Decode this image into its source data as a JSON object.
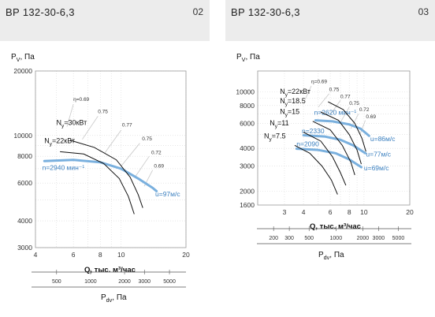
{
  "panels": [
    {
      "model": "ВР 132-30-6,3",
      "number": "02"
    },
    {
      "model": "ВР 132-30-6,3",
      "number": "03"
    }
  ],
  "chart_data": [
    {
      "type": "line",
      "ylabel": "P",
      "ylabel_sub": "V",
      "ylabel_unit": ", Па",
      "xlabel": "Q, тыс. м³/час",
      "x2label": "P",
      "x2label_sub": "dv",
      "x2label_unit": ", Па",
      "log_scale": true,
      "grid": true,
      "xlim": [
        4,
        20
      ],
      "ylim": [
        3000,
        20000
      ],
      "x_ticks": [
        4,
        6,
        8,
        10,
        20
      ],
      "y_ticks": [
        3000,
        4000,
        6000,
        8000,
        10000,
        20000
      ],
      "x2_ticks": [
        500,
        1000,
        2000,
        3000,
        5000
      ],
      "x2_range": [
        300,
        7000
      ],
      "efficiency_labels": [
        {
          "text": "η=0.69",
          "x": 6.0,
          "y": 14500
        },
        {
          "text": "0.75",
          "x": 7.8,
          "y": 12700
        },
        {
          "text": "0.77",
          "x": 10.1,
          "y": 11000
        },
        {
          "text": "0.75",
          "x": 12.5,
          "y": 9500
        },
        {
          "text": "0.72",
          "x": 13.8,
          "y": 8200
        },
        {
          "text": "0.69",
          "x": 14.2,
          "y": 7100
        }
      ],
      "efficiency_lines": [
        [
          [
            6.0,
            14000
          ],
          [
            5.6,
            11000
          ]
        ],
        [
          [
            7.8,
            12300
          ],
          [
            6.6,
            9600
          ]
        ],
        [
          [
            10.0,
            10600
          ],
          [
            8.4,
            8300
          ]
        ],
        [
          [
            12.2,
            9200
          ],
          [
            10.0,
            7200
          ]
        ],
        [
          [
            13.5,
            8000
          ],
          [
            11.6,
            6400
          ]
        ],
        [
          [
            14.0,
            6900
          ],
          [
            12.8,
            5800
          ]
        ]
      ],
      "power_curves": [
        {
          "label": "N",
          "sub": "y",
          "suffix": "=30кВт",
          "label_x": 5.0,
          "label_y": 11200,
          "points": [
            [
              5.8,
              9500
            ],
            [
              7.5,
              8800
            ],
            [
              9.5,
              7700
            ],
            [
              11.0,
              6400
            ],
            [
              12.0,
              5300
            ],
            [
              12.6,
              4600
            ]
          ]
        },
        {
          "label": "N",
          "sub": "y",
          "suffix": "=22кВт",
          "label_x": 4.4,
          "label_y": 9200,
          "points": [
            [
              5.2,
              8400
            ],
            [
              6.7,
              8200
            ],
            [
              8.3,
              7400
            ],
            [
              9.8,
              6300
            ],
            [
              10.8,
              5200
            ],
            [
              11.5,
              4300
            ]
          ]
        }
      ],
      "speed_curves": [
        {
          "label": "n=2940 мин⁻¹",
          "label_x": 4.3,
          "label_y": 6900,
          "points": [
            [
              4.4,
              7600
            ],
            [
              6.0,
              7700
            ],
            [
              8.0,
              7500
            ],
            [
              10.0,
              7000
            ],
            [
              12.0,
              6300
            ],
            [
              14.0,
              5700
            ],
            [
              14.6,
              5500
            ]
          ]
        }
      ],
      "velocity_labels": [
        {
          "text": "u=97м/с",
          "x": 14.4,
          "y": 5200
        }
      ]
    },
    {
      "type": "line",
      "ylabel": "P",
      "ylabel_sub": "V",
      "ylabel_unit": ", Па",
      "xlabel": "Q, тыс. м³/час",
      "x2label": "P",
      "x2label_sub": "dv",
      "x2label_unit": ", Па",
      "log_scale": true,
      "grid": true,
      "xlim": [
        2,
        20
      ],
      "ylim": [
        1600,
        14000
      ],
      "x_ticks": [
        3,
        4,
        6,
        8,
        10,
        20
      ],
      "y_ticks": [
        1600,
        2000,
        3000,
        4000,
        6000,
        8000,
        10000
      ],
      "x2_ticks": [
        200,
        300,
        500,
        1000,
        2000,
        3000,
        5000
      ],
      "x2_range": [
        130,
        7000
      ],
      "efficiency_labels": [
        {
          "text": "η=0.69",
          "x": 4.5,
          "y": 11500
        },
        {
          "text": "0.75",
          "x": 5.9,
          "y": 10100
        },
        {
          "text": "0.77",
          "x": 7.0,
          "y": 9000
        },
        {
          "text": "0.75",
          "x": 8.0,
          "y": 8100
        },
        {
          "text": "0.72",
          "x": 9.3,
          "y": 7300
        },
        {
          "text": "0.69",
          "x": 10.3,
          "y": 6500
        }
      ],
      "efficiency_lines": [
        [
          [
            4.5,
            11000
          ],
          [
            4.1,
            8800
          ]
        ],
        [
          [
            5.9,
            9700
          ],
          [
            5.0,
            7800
          ]
        ],
        [
          [
            7.0,
            8700
          ],
          [
            6.0,
            6900
          ]
        ],
        [
          [
            8.0,
            7800
          ],
          [
            7.0,
            6100
          ]
        ],
        [
          [
            9.2,
            7000
          ],
          [
            8.2,
            5500
          ]
        ],
        [
          [
            10.2,
            6300
          ],
          [
            9.4,
            5000
          ]
        ]
      ],
      "power_curves": [
        {
          "label": "N",
          "sub": "y",
          "suffix": "=22кВт",
          "label_x": 2.8,
          "label_y": 9700,
          "points": [
            [
              5.8,
              8500
            ],
            [
              7.3,
              7500
            ],
            [
              8.7,
              6000
            ],
            [
              9.7,
              4700
            ],
            [
              10.3,
              3800
            ]
          ]
        },
        {
          "label": "N",
          "sub": "y",
          "suffix": "=18.5",
          "label_x": 2.8,
          "label_y": 8300,
          "points": [
            [
              5.2,
              7200
            ],
            [
              6.8,
              6300
            ],
            [
              8.0,
              5000
            ],
            [
              9.0,
              3900
            ],
            [
              9.6,
              3100
            ]
          ]
        },
        {
          "label": "N",
          "sub": "y",
          "suffix": "=15",
          "label_x": 2.8,
          "label_y": 7000,
          "points": [
            [
              4.6,
              6200
            ],
            [
              6.0,
              5400
            ],
            [
              7.2,
              4200
            ],
            [
              8.2,
              3200
            ],
            [
              8.7,
              2600
            ]
          ]
        },
        {
          "label": "N",
          "sub": "y",
          "suffix": "=11",
          "label_x": 2.4,
          "label_y": 5800,
          "points": [
            [
              4.0,
              5200
            ],
            [
              5.2,
              4500
            ],
            [
              6.2,
              3500
            ],
            [
              7.0,
              2700
            ],
            [
              7.6,
              2200
            ]
          ]
        },
        {
          "label": "N",
          "sub": "y",
          "suffix": "=7.5",
          "label_x": 2.2,
          "label_y": 4700,
          "points": [
            [
              3.5,
              4200
            ],
            [
              4.4,
              3700
            ],
            [
              5.3,
              3000
            ],
            [
              6.1,
              2400
            ],
            [
              6.7,
              1900
            ]
          ]
        }
      ],
      "speed_curves": [
        {
          "label": "n=2620 мин⁻¹",
          "label_x": 4.7,
          "label_y": 6900,
          "points": [
            [
              4.8,
              6300
            ],
            [
              6.2,
              6200
            ],
            [
              8.0,
              5900
            ],
            [
              9.5,
              5500
            ],
            [
              10.8,
              4900
            ]
          ]
        },
        {
          "label": "n=2330",
          "label_x": 3.9,
          "label_y": 5100,
          "points": [
            [
              4.0,
              4950
            ],
            [
              5.5,
              4850
            ],
            [
              7.0,
              4600
            ],
            [
              8.5,
              4200
            ],
            [
              10.2,
              3700
            ]
          ]
        },
        {
          "label": "n=2090",
          "label_x": 3.6,
          "label_y": 4150,
          "points": [
            [
              3.6,
              3980
            ],
            [
              5.0,
              3900
            ],
            [
              6.5,
              3700
            ],
            [
              8.0,
              3350
            ],
            [
              9.6,
              2950
            ]
          ]
        }
      ],
      "velocity_labels": [
        {
          "text": "u=86м/с",
          "x": 11.0,
          "y": 4500
        },
        {
          "text": "u=77м/с",
          "x": 10.3,
          "y": 3500
        },
        {
          "text": "u=69м/с",
          "x": 10.0,
          "y": 2800
        }
      ]
    }
  ]
}
